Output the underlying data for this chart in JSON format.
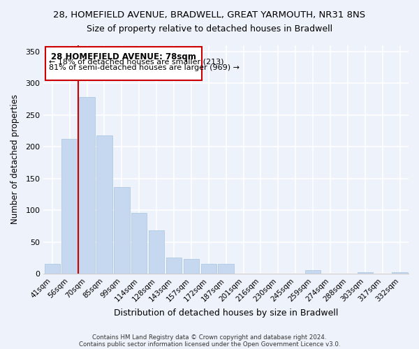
{
  "title": "28, HOMEFIELD AVENUE, BRADWELL, GREAT YARMOUTH, NR31 8NS",
  "subtitle": "Size of property relative to detached houses in Bradwell",
  "xlabel": "Distribution of detached houses by size in Bradwell",
  "ylabel": "Number of detached properties",
  "bar_labels": [
    "41sqm",
    "56sqm",
    "70sqm",
    "85sqm",
    "99sqm",
    "114sqm",
    "128sqm",
    "143sqm",
    "157sqm",
    "172sqm",
    "187sqm",
    "201sqm",
    "216sqm",
    "230sqm",
    "245sqm",
    "259sqm",
    "274sqm",
    "288sqm",
    "303sqm",
    "317sqm",
    "332sqm"
  ],
  "bar_values": [
    15,
    212,
    278,
    218,
    137,
    96,
    68,
    25,
    23,
    15,
    15,
    0,
    0,
    0,
    0,
    5,
    0,
    0,
    2,
    0,
    2
  ],
  "bar_color": "#c5d8f0",
  "bar_edge_color": "#a8c4e0",
  "vline_x": 1.5,
  "vline_color": "#cc0000",
  "annotation_title": "28 HOMEFIELD AVENUE: 78sqm",
  "annotation_line1": "← 18% of detached houses are smaller (213)",
  "annotation_line2": "81% of semi-detached houses are larger (969) →",
  "ylim": [
    0,
    360
  ],
  "yticks": [
    0,
    50,
    100,
    150,
    200,
    250,
    300,
    350
  ],
  "footer1": "Contains HM Land Registry data © Crown copyright and database right 2024.",
  "footer2": "Contains public sector information licensed under the Open Government Licence v3.0.",
  "bg_color": "#eef2fa",
  "plot_bg_color": "#eef2fa"
}
